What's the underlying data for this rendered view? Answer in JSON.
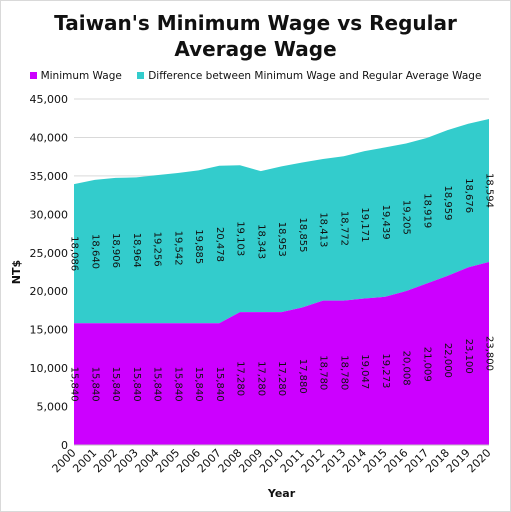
{
  "chart_data": {
    "type": "area",
    "stacked": true,
    "title_lines": [
      "Taiwan's Minimum Wage vs Regular",
      "Average Wage"
    ],
    "xlabel": "Year",
    "ylabel": "NT$",
    "ylim": [
      0,
      45000
    ],
    "yticks": [
      0,
      5000,
      10000,
      15000,
      20000,
      25000,
      30000,
      35000,
      40000,
      45000
    ],
    "ytick_labels": [
      "0",
      "5,000",
      "10,000",
      "15,000",
      "20,000",
      "25,000",
      "30,000",
      "35,000",
      "40,000",
      "45,000"
    ],
    "grid": true,
    "legend_position": "top",
    "categories": [
      "2000",
      "2001",
      "2002",
      "2003",
      "2004",
      "2005",
      "2006",
      "2007",
      "2008",
      "2009",
      "2010",
      "2011",
      "2012",
      "2013",
      "2014",
      "2015",
      "2016",
      "2017",
      "2018",
      "2019",
      "2020"
    ],
    "series": [
      {
        "name": "Minimum Wage",
        "color": "#cc00ff",
        "values": [
          15840,
          15840,
          15840,
          15840,
          15840,
          15840,
          15840,
          15840,
          17280,
          17280,
          17280,
          17880,
          18780,
          18780,
          19047,
          19273,
          20008,
          21009,
          22000,
          23100,
          23800
        ],
        "labels": [
          "15,840",
          "15,840",
          "15,840",
          "15,840",
          "15,840",
          "15,840",
          "15,840",
          "15,840",
          "17,280",
          "17,280",
          "17,280",
          "17,880",
          "18,780",
          "18,780",
          "19,047",
          "19,273",
          "20,008",
          "21,009",
          "22,000",
          "23,100",
          "23,800"
        ]
      },
      {
        "name": "Difference between Minimum Wage and Regular Average Wage",
        "color": "#33cccc",
        "values": [
          18086,
          18640,
          18906,
          18964,
          19256,
          19542,
          19885,
          20478,
          19103,
          18343,
          18953,
          18855,
          18413,
          18772,
          19171,
          19439,
          19205,
          18919,
          18959,
          18676,
          18594
        ],
        "labels": [
          "18,086",
          "18,640",
          "18,906",
          "18,964",
          "19,256",
          "19,542",
          "19,885",
          "20,478",
          "19,103",
          "18,343",
          "18,953",
          "18,855",
          "18,413",
          "18,772",
          "19,171",
          "19,439",
          "19,205",
          "18,919",
          "18,959",
          "18,676",
          "18,594"
        ]
      }
    ]
  }
}
